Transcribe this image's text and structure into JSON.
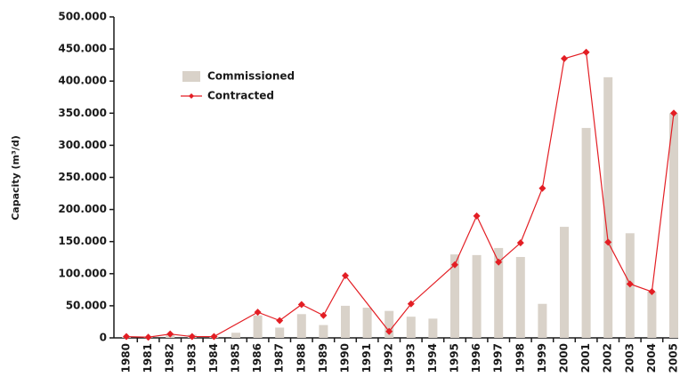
{
  "chart_data": {
    "type": "bar_line",
    "ylabel": "Capacity (m³/d)",
    "x": [
      1980,
      1981,
      1982,
      1983,
      1984,
      1985,
      1986,
      1987,
      1988,
      1989,
      1990,
      1991,
      1992,
      1993,
      1994,
      1995,
      1996,
      1997,
      1998,
      1999,
      2000,
      2001,
      2002,
      2003,
      2004,
      2005
    ],
    "series": [
      {
        "name": "Commissioned",
        "type": "bar",
        "color": "#d9d2c9",
        "values": [
          1000,
          1000,
          5000,
          5000,
          2000,
          8000,
          35000,
          16000,
          37000,
          20000,
          50000,
          47000,
          42000,
          33000,
          30000,
          130000,
          129000,
          140000,
          126000,
          53000,
          173000,
          327000,
          406000,
          163000,
          72000,
          350000
        ]
      },
      {
        "name": "Contracted",
        "type": "line",
        "color": "#e31e24",
        "x": [
          1980,
          1981,
          1982,
          1983,
          1984,
          1986,
          1987,
          1988,
          1989,
          1990,
          1992,
          1993,
          1995,
          1996,
          1997,
          1998,
          1999,
          2000,
          2001,
          2002,
          2003,
          2004,
          2005
        ],
        "values": [
          2000,
          1000,
          6000,
          2000,
          2000,
          40000,
          27000,
          52000,
          35000,
          97000,
          10000,
          53000,
          114000,
          190000,
          118000,
          148000,
          233000,
          435000,
          445000,
          149000,
          84000,
          72000,
          350000
        ]
      }
    ],
    "ylim": [
      0,
      500000
    ],
    "yticks": [
      0,
      {
        "value": 50000,
        "label": "50.000"
      },
      {
        "value": 100000,
        "label": "100.000"
      },
      {
        "value": 150000,
        "label": "150.000"
      },
      {
        "value": 200000,
        "label": "200.000"
      },
      {
        "value": 250000,
        "label": "250.000"
      },
      {
        "value": 300000,
        "label": "300.000"
      },
      {
        "value": 350000,
        "label": "350.000"
      },
      {
        "value": 400000,
        "label": "400.000"
      },
      {
        "value": 450000,
        "label": "450.000"
      },
      {
        "value": 500000,
        "label": "500.000"
      }
    ],
    "legend": "upper left"
  }
}
